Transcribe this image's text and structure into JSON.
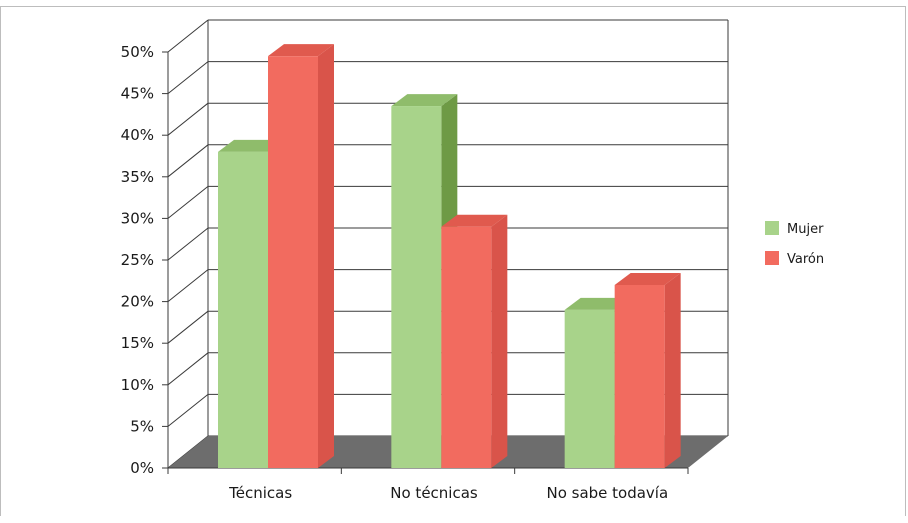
{
  "chart_data": {
    "type": "bar",
    "categories": [
      "Técnicas",
      "No técnicas",
      "No sabe todavía"
    ],
    "series": [
      {
        "name": "Mujer",
        "values": [
          38,
          43.5,
          19
        ],
        "color": "#a8d38a",
        "side_color": "#6e9a45",
        "top_color": "#8fbc6b"
      },
      {
        "name": "Varón",
        "values": [
          49.5,
          29,
          22
        ],
        "color": "#f26b5f",
        "side_color": "#d9544a",
        "top_color": "#e05a4e"
      }
    ],
    "ylim": [
      0,
      50
    ],
    "yticks": [
      "0%",
      "5%",
      "10%",
      "15%",
      "20%",
      "25%",
      "30%",
      "35%",
      "40%",
      "45%",
      "50%"
    ],
    "grid": true,
    "legend": "right",
    "floor_color": "#6d6d6d",
    "title": "",
    "xlabel": "",
    "ylabel": ""
  }
}
